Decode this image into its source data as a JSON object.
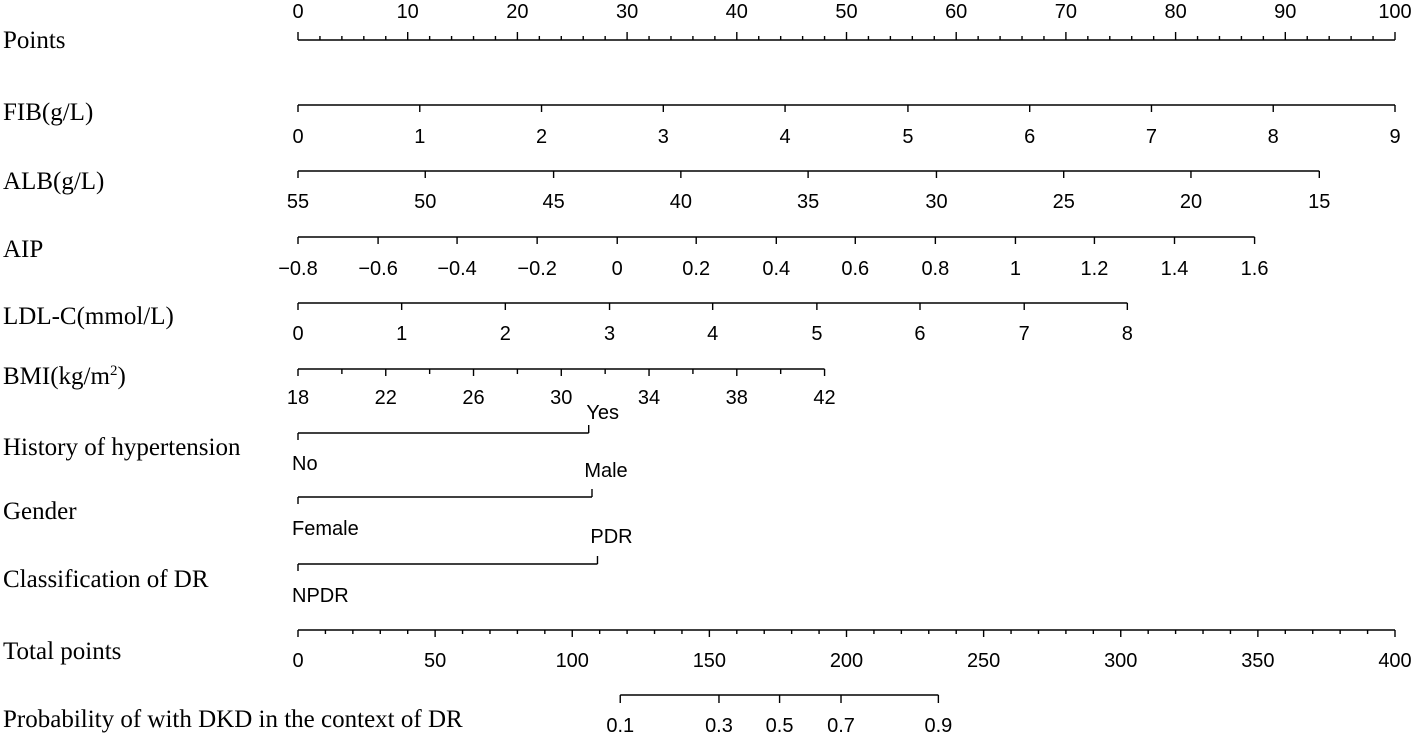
{
  "chart_data": {
    "type": "nomogram",
    "colors": {
      "ink": "#000000",
      "background": "#ffffff"
    },
    "scales": [
      {
        "id": "points",
        "label": "Points",
        "ticks": [
          {
            "value": 0,
            "label": "0"
          },
          {
            "value": 10,
            "label": "10"
          },
          {
            "value": 20,
            "label": "20"
          },
          {
            "value": 30,
            "label": "30"
          },
          {
            "value": 40,
            "label": "40"
          },
          {
            "value": 50,
            "label": "50"
          },
          {
            "value": 60,
            "label": "60"
          },
          {
            "value": 70,
            "label": "70"
          },
          {
            "value": 80,
            "label": "80"
          },
          {
            "value": 90,
            "label": "90"
          },
          {
            "value": 100,
            "label": "100"
          }
        ],
        "minor_step": 2
      },
      {
        "id": "fib",
        "label": "FIB(g/L)",
        "ticks": [
          {
            "value": 0,
            "label": "0",
            "points": 0
          },
          {
            "value": 1,
            "label": "1",
            "points": 11.1
          },
          {
            "value": 2,
            "label": "2",
            "points": 22.2
          },
          {
            "value": 3,
            "label": "3",
            "points": 33.3
          },
          {
            "value": 4,
            "label": "4",
            "points": 44.4
          },
          {
            "value": 5,
            "label": "5",
            "points": 55.6
          },
          {
            "value": 6,
            "label": "6",
            "points": 66.7
          },
          {
            "value": 7,
            "label": "7",
            "points": 77.8
          },
          {
            "value": 8,
            "label": "8",
            "points": 88.9
          },
          {
            "value": 9,
            "label": "9",
            "points": 100
          }
        ]
      },
      {
        "id": "alb",
        "label": "ALB(g/L)",
        "ticks": [
          {
            "value": 55,
            "label": "55",
            "points": 0
          },
          {
            "value": 50,
            "label": "50",
            "points": 11.6
          },
          {
            "value": 45,
            "label": "45",
            "points": 23.3
          },
          {
            "value": 40,
            "label": "40",
            "points": 34.9
          },
          {
            "value": 35,
            "label": "35",
            "points": 46.5
          },
          {
            "value": 30,
            "label": "30",
            "points": 58.2
          },
          {
            "value": 25,
            "label": "25",
            "points": 69.8
          },
          {
            "value": 20,
            "label": "20",
            "points": 81.4
          },
          {
            "value": 15,
            "label": "15",
            "points": 93.1
          }
        ]
      },
      {
        "id": "aip",
        "label": "AIP",
        "ticks": [
          {
            "value": -0.8,
            "label": "−0.8",
            "points": 0
          },
          {
            "value": -0.6,
            "label": "−0.6",
            "points": 7.3
          },
          {
            "value": -0.4,
            "label": "−0.4",
            "points": 14.5
          },
          {
            "value": -0.2,
            "label": "−0.2",
            "points": 21.8
          },
          {
            "value": 0,
            "label": "0",
            "points": 29.1
          },
          {
            "value": 0.2,
            "label": "0.2",
            "points": 36.3
          },
          {
            "value": 0.4,
            "label": "0.4",
            "points": 43.6
          },
          {
            "value": 0.6,
            "label": "0.6",
            "points": 50.8
          },
          {
            "value": 0.8,
            "label": "0.8",
            "points": 58.1
          },
          {
            "value": 1,
            "label": "1",
            "points": 65.4
          },
          {
            "value": 1.2,
            "label": "1.2",
            "points": 72.6
          },
          {
            "value": 1.4,
            "label": "1.4",
            "points": 79.9
          },
          {
            "value": 1.6,
            "label": "1.6",
            "points": 87.2
          }
        ]
      },
      {
        "id": "ldl",
        "label": "LDL-C(mmol/L)",
        "ticks": [
          {
            "value": 0,
            "label": "0",
            "points": 0
          },
          {
            "value": 1,
            "label": "1",
            "points": 9.45
          },
          {
            "value": 2,
            "label": "2",
            "points": 18.9
          },
          {
            "value": 3,
            "label": "3",
            "points": 28.4
          },
          {
            "value": 4,
            "label": "4",
            "points": 37.8
          },
          {
            "value": 5,
            "label": "5",
            "points": 47.3
          },
          {
            "value": 6,
            "label": "6",
            "points": 56.7
          },
          {
            "value": 7,
            "label": "7",
            "points": 66.2
          },
          {
            "value": 8,
            "label": "8",
            "points": 75.6
          }
        ]
      },
      {
        "id": "bmi",
        "label_main": "BMI(kg/m",
        "label_sup": "2",
        "label_end": ")",
        "ticks": [
          {
            "value": 18,
            "label": "18",
            "points": 0
          },
          {
            "value": 20,
            "label": "",
            "points": 4
          },
          {
            "value": 22,
            "label": "22",
            "points": 8
          },
          {
            "value": 24,
            "label": "",
            "points": 12
          },
          {
            "value": 26,
            "label": "26",
            "points": 16
          },
          {
            "value": 28,
            "label": "",
            "points": 20
          },
          {
            "value": 30,
            "label": "30",
            "points": 24
          },
          {
            "value": 32,
            "label": "",
            "points": 28
          },
          {
            "value": 34,
            "label": "34",
            "points": 32
          },
          {
            "value": 36,
            "label": "",
            "points": 36
          },
          {
            "value": 38,
            "label": "38",
            "points": 40
          },
          {
            "value": 40,
            "label": "",
            "points": 44
          },
          {
            "value": 42,
            "label": "42",
            "points": 48
          }
        ]
      },
      {
        "id": "hypertension",
        "label": "History of hypertension",
        "levels": [
          {
            "label": "No",
            "points": 0
          },
          {
            "label": "Yes",
            "points": 26.5
          }
        ]
      },
      {
        "id": "gender",
        "label": "Gender",
        "levels": [
          {
            "label": "Female",
            "points": 0
          },
          {
            "label": "Male",
            "points": 26.8
          }
        ]
      },
      {
        "id": "dr_class",
        "label": "Classification of DR",
        "levels": [
          {
            "label": "NPDR",
            "points": 0
          },
          {
            "label": "PDR",
            "points": 27.3
          }
        ]
      },
      {
        "id": "total",
        "label": "Total points",
        "ticks": [
          {
            "value": 0,
            "label": "0"
          },
          {
            "value": 50,
            "label": "50"
          },
          {
            "value": 100,
            "label": "100"
          },
          {
            "value": 150,
            "label": "150"
          },
          {
            "value": 200,
            "label": "200"
          },
          {
            "value": 250,
            "label": "250"
          },
          {
            "value": 300,
            "label": "300"
          },
          {
            "value": 350,
            "label": "350"
          },
          {
            "value": 400,
            "label": "400"
          }
        ],
        "minor_step": 10,
        "range": [
          0,
          400
        ]
      },
      {
        "id": "probability",
        "label": "Probability of with DKD in the context of DR",
        "ticks": [
          {
            "value": 0.1,
            "label": "0.1",
            "total_points": 117.5
          },
          {
            "value": 0.3,
            "label": "0.3",
            "total_points": 153.5
          },
          {
            "value": 0.5,
            "label": "0.5",
            "total_points": 175.6
          },
          {
            "value": 0.7,
            "label": "0.7",
            "total_points": 198
          },
          {
            "value": 0.9,
            "label": "0.9",
            "total_points": 233.5
          }
        ]
      }
    ]
  }
}
